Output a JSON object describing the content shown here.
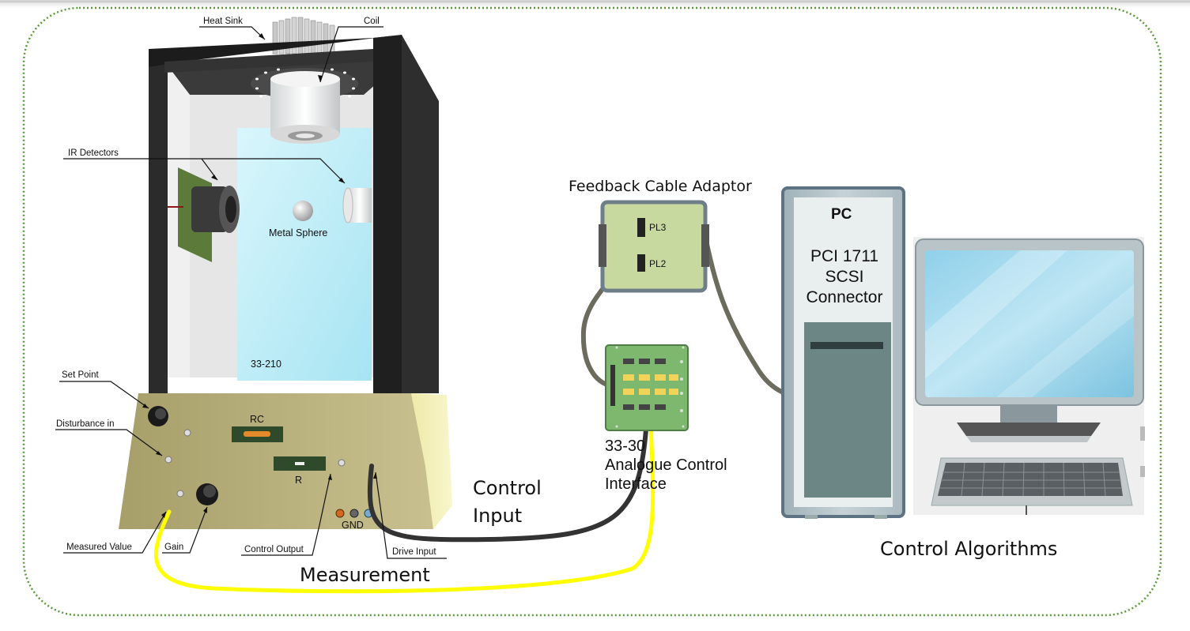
{
  "labels": {
    "heat_sink": "Heat Sink",
    "coil": "Coil",
    "ir_detectors": "IR Detectors",
    "metal_sphere": "Metal Sphere",
    "model_number": "33-210",
    "set_point": "Set Point",
    "disturbance_in": "Disturbance in",
    "rc": "RC",
    "r": "R",
    "gnd": "GND",
    "measured_value": "Measured Value",
    "gain": "Gain",
    "control_output": "Control Output",
    "drive_input": "Drive Input",
    "measurement": "Measurement",
    "control_input_line1": "Control",
    "control_input_line2": "Input",
    "feedback_cable_adaptor": "Feedback Cable Adaptor",
    "pl3": "PL3",
    "pl2": "PL2",
    "interface_line1": "33-30",
    "interface_line2": "Analogue Control",
    "interface_line3": "Interface",
    "pc": "PC",
    "pci_line1": "PCI 1711",
    "pci_line2": "SCSI",
    "pci_line3": "Connector",
    "control_algorithms": "Control Algorithms"
  },
  "colors": {
    "border": "#5a9a3a",
    "measurement_cable": "#ffff00",
    "control_cable": "#333333",
    "feedback_cable": "#6b6b5e",
    "pc_case": "#b8c7cc",
    "adaptor_board": "#c8d9a0",
    "interface_board": "#7db86e",
    "chamber_glass": "#bfeef8",
    "base_panel": "#b5ad78"
  }
}
